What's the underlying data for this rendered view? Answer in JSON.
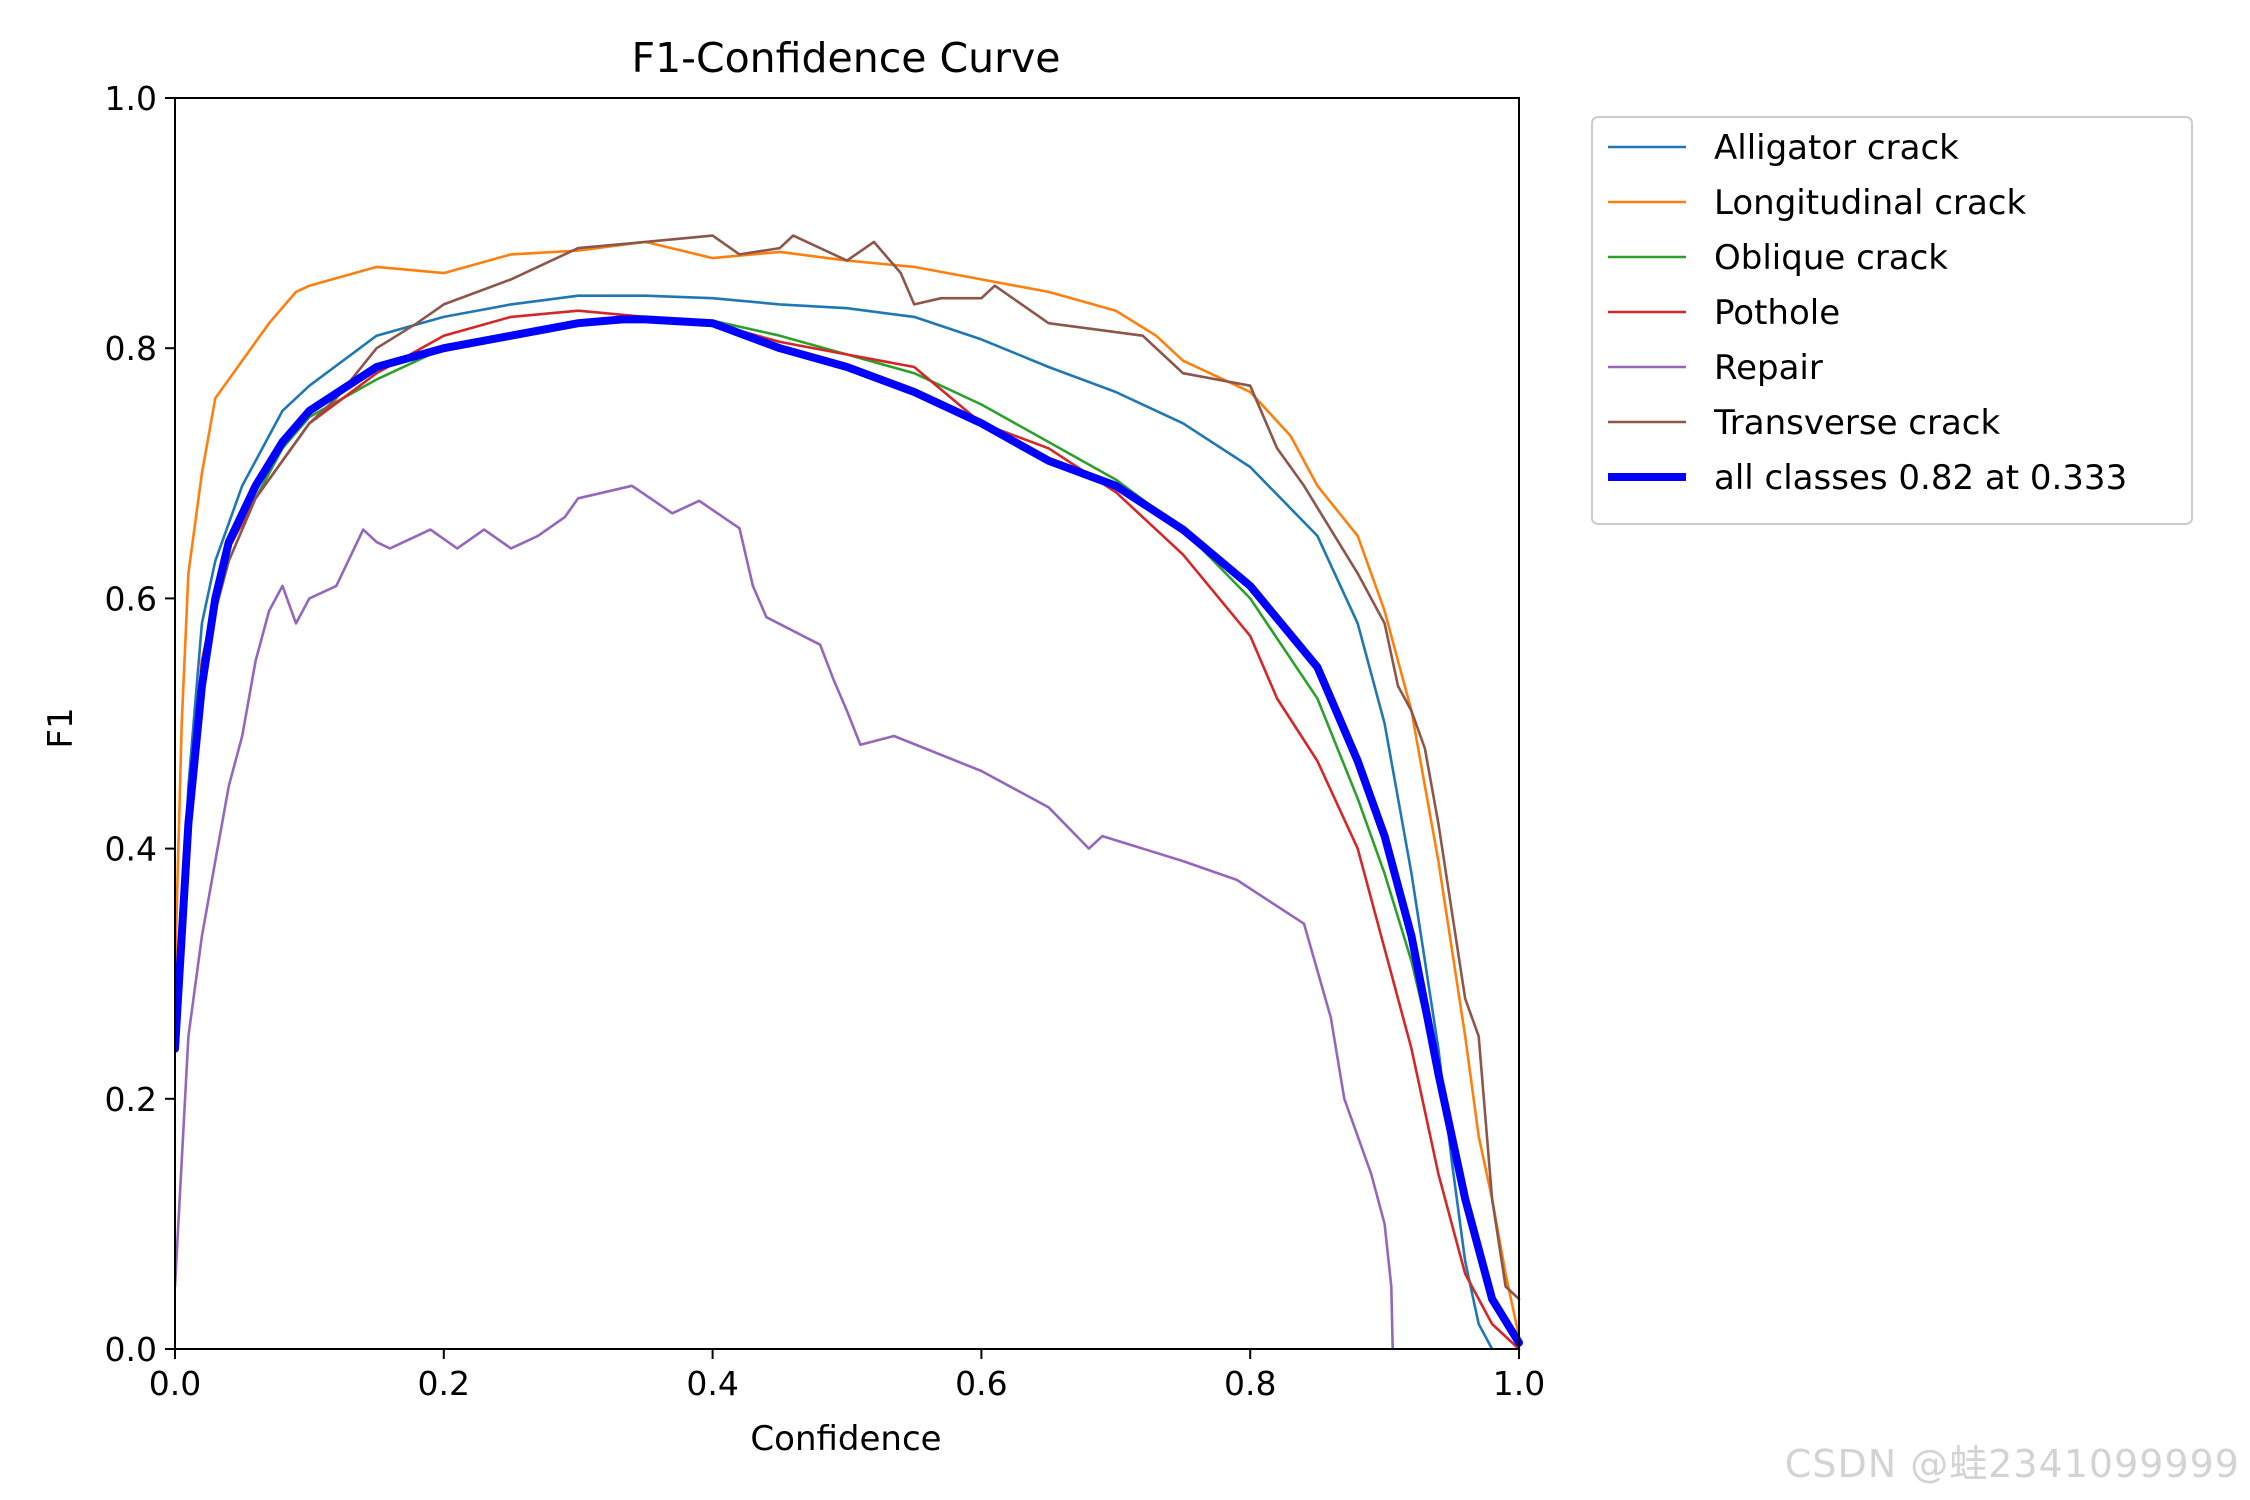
{
  "chart_data": {
    "type": "line",
    "title": "F1-Confidence Curve",
    "xlabel": "Confidence",
    "ylabel": "F1",
    "xlim": [
      0,
      1
    ],
    "ylim": [
      0,
      1
    ],
    "xticks": [
      "0.0",
      "0.2",
      "0.4",
      "0.6",
      "0.8",
      "1.0"
    ],
    "yticks": [
      "0.0",
      "0.2",
      "0.4",
      "0.6",
      "0.8",
      "1.0"
    ],
    "legend_position": "outside-upper-right",
    "series": [
      {
        "name": "Alligator crack",
        "color": "#1f77b4",
        "bold": false,
        "points": [
          [
            0,
            0.24
          ],
          [
            0.01,
            0.45
          ],
          [
            0.02,
            0.58
          ],
          [
            0.03,
            0.63
          ],
          [
            0.05,
            0.69
          ],
          [
            0.08,
            0.75
          ],
          [
            0.1,
            0.77
          ],
          [
            0.15,
            0.81
          ],
          [
            0.2,
            0.825
          ],
          [
            0.25,
            0.835
          ],
          [
            0.3,
            0.842
          ],
          [
            0.35,
            0.842
          ],
          [
            0.4,
            0.84
          ],
          [
            0.45,
            0.835
          ],
          [
            0.5,
            0.832
          ],
          [
            0.55,
            0.825
          ],
          [
            0.6,
            0.807
          ],
          [
            0.65,
            0.785
          ],
          [
            0.7,
            0.765
          ],
          [
            0.75,
            0.74
          ],
          [
            0.8,
            0.705
          ],
          [
            0.85,
            0.65
          ],
          [
            0.88,
            0.58
          ],
          [
            0.9,
            0.5
          ],
          [
            0.92,
            0.38
          ],
          [
            0.94,
            0.24
          ],
          [
            0.95,
            0.15
          ],
          [
            0.96,
            0.07
          ],
          [
            0.97,
            0.02
          ],
          [
            0.98,
            0
          ]
        ]
      },
      {
        "name": "Longitudinal crack",
        "color": "#ff7f0e",
        "bold": false,
        "points": [
          [
            0,
            0.3
          ],
          [
            0.005,
            0.5
          ],
          [
            0.01,
            0.62
          ],
          [
            0.02,
            0.7
          ],
          [
            0.03,
            0.76
          ],
          [
            0.05,
            0.79
          ],
          [
            0.07,
            0.82
          ],
          [
            0.09,
            0.845
          ],
          [
            0.1,
            0.85
          ],
          [
            0.15,
            0.865
          ],
          [
            0.2,
            0.86
          ],
          [
            0.25,
            0.875
          ],
          [
            0.3,
            0.878
          ],
          [
            0.35,
            0.885
          ],
          [
            0.4,
            0.872
          ],
          [
            0.45,
            0.877
          ],
          [
            0.5,
            0.87
          ],
          [
            0.55,
            0.865
          ],
          [
            0.6,
            0.855
          ],
          [
            0.65,
            0.845
          ],
          [
            0.7,
            0.83
          ],
          [
            0.73,
            0.81
          ],
          [
            0.75,
            0.79
          ],
          [
            0.8,
            0.765
          ],
          [
            0.83,
            0.73
          ],
          [
            0.85,
            0.69
          ],
          [
            0.88,
            0.65
          ],
          [
            0.9,
            0.59
          ],
          [
            0.92,
            0.51
          ],
          [
            0.93,
            0.45
          ],
          [
            0.94,
            0.39
          ],
          [
            0.95,
            0.32
          ],
          [
            0.96,
            0.25
          ],
          [
            0.97,
            0.17
          ],
          [
            0.98,
            0.12
          ],
          [
            0.99,
            0.06
          ],
          [
            1.0,
            0.01
          ]
        ]
      },
      {
        "name": "Oblique crack",
        "color": "#2ca02c",
        "bold": false,
        "points": [
          [
            0,
            0.24
          ],
          [
            0.01,
            0.42
          ],
          [
            0.02,
            0.55
          ],
          [
            0.03,
            0.6
          ],
          [
            0.04,
            0.64
          ],
          [
            0.06,
            0.68
          ],
          [
            0.08,
            0.72
          ],
          [
            0.1,
            0.745
          ],
          [
            0.15,
            0.775
          ],
          [
            0.2,
            0.8
          ],
          [
            0.25,
            0.81
          ],
          [
            0.3,
            0.82
          ],
          [
            0.35,
            0.822
          ],
          [
            0.4,
            0.822
          ],
          [
            0.45,
            0.81
          ],
          [
            0.5,
            0.795
          ],
          [
            0.55,
            0.78
          ],
          [
            0.6,
            0.755
          ],
          [
            0.65,
            0.725
          ],
          [
            0.7,
            0.695
          ],
          [
            0.75,
            0.655
          ],
          [
            0.8,
            0.6
          ],
          [
            0.85,
            0.52
          ],
          [
            0.88,
            0.44
          ],
          [
            0.9,
            0.38
          ],
          [
            0.92,
            0.31
          ],
          [
            0.94,
            0.22
          ],
          [
            0.96,
            0.12
          ],
          [
            0.98,
            0.04
          ],
          [
            1.0,
            0.005
          ]
        ]
      },
      {
        "name": "Pothole",
        "color": "#d62728",
        "bold": false,
        "points": [
          [
            0,
            0.24
          ],
          [
            0.01,
            0.42
          ],
          [
            0.02,
            0.55
          ],
          [
            0.03,
            0.6
          ],
          [
            0.04,
            0.64
          ],
          [
            0.06,
            0.68
          ],
          [
            0.08,
            0.71
          ],
          [
            0.1,
            0.74
          ],
          [
            0.15,
            0.78
          ],
          [
            0.2,
            0.81
          ],
          [
            0.25,
            0.825
          ],
          [
            0.3,
            0.83
          ],
          [
            0.35,
            0.825
          ],
          [
            0.4,
            0.82
          ],
          [
            0.45,
            0.805
          ],
          [
            0.5,
            0.795
          ],
          [
            0.55,
            0.785
          ],
          [
            0.6,
            0.74
          ],
          [
            0.65,
            0.72
          ],
          [
            0.7,
            0.685
          ],
          [
            0.75,
            0.635
          ],
          [
            0.8,
            0.57
          ],
          [
            0.82,
            0.52
          ],
          [
            0.85,
            0.47
          ],
          [
            0.88,
            0.4
          ],
          [
            0.9,
            0.32
          ],
          [
            0.92,
            0.24
          ],
          [
            0.94,
            0.14
          ],
          [
            0.96,
            0.06
          ],
          [
            0.98,
            0.02
          ],
          [
            1.0,
            0
          ]
        ]
      },
      {
        "name": "Repair",
        "color": "#9467bd",
        "bold": false,
        "points": [
          [
            0,
            0.05
          ],
          [
            0.005,
            0.15
          ],
          [
            0.01,
            0.25
          ],
          [
            0.02,
            0.33
          ],
          [
            0.03,
            0.39
          ],
          [
            0.04,
            0.45
          ],
          [
            0.05,
            0.49
          ],
          [
            0.06,
            0.55
          ],
          [
            0.07,
            0.59
          ],
          [
            0.08,
            0.61
          ],
          [
            0.09,
            0.58
          ],
          [
            0.1,
            0.6
          ],
          [
            0.12,
            0.61
          ],
          [
            0.14,
            0.655
          ],
          [
            0.15,
            0.645
          ],
          [
            0.16,
            0.64
          ],
          [
            0.19,
            0.655
          ],
          [
            0.21,
            0.64
          ],
          [
            0.23,
            0.655
          ],
          [
            0.25,
            0.64
          ],
          [
            0.27,
            0.65
          ],
          [
            0.29,
            0.665
          ],
          [
            0.3,
            0.68
          ],
          [
            0.34,
            0.69
          ],
          [
            0.37,
            0.668
          ],
          [
            0.39,
            0.678
          ],
          [
            0.42,
            0.656
          ],
          [
            0.43,
            0.61
          ],
          [
            0.44,
            0.585
          ],
          [
            0.48,
            0.563
          ],
          [
            0.49,
            0.535
          ],
          [
            0.5,
            0.51
          ],
          [
            0.51,
            0.483
          ],
          [
            0.535,
            0.49
          ],
          [
            0.6,
            0.462
          ],
          [
            0.65,
            0.433
          ],
          [
            0.68,
            0.4
          ],
          [
            0.69,
            0.41
          ],
          [
            0.75,
            0.39
          ],
          [
            0.79,
            0.375
          ],
          [
            0.84,
            0.34
          ],
          [
            0.86,
            0.265
          ],
          [
            0.87,
            0.2
          ],
          [
            0.89,
            0.14
          ],
          [
            0.9,
            0.1
          ],
          [
            0.905,
            0.05
          ],
          [
            0.906,
            0
          ]
        ]
      },
      {
        "name": "Transverse crack",
        "color": "#8c564b",
        "bold": false,
        "points": [
          [
            0,
            0.24
          ],
          [
            0.01,
            0.42
          ],
          [
            0.02,
            0.53
          ],
          [
            0.03,
            0.59
          ],
          [
            0.04,
            0.63
          ],
          [
            0.06,
            0.68
          ],
          [
            0.08,
            0.71
          ],
          [
            0.1,
            0.74
          ],
          [
            0.12,
            0.76
          ],
          [
            0.15,
            0.8
          ],
          [
            0.18,
            0.82
          ],
          [
            0.2,
            0.835
          ],
          [
            0.25,
            0.855
          ],
          [
            0.3,
            0.88
          ],
          [
            0.35,
            0.885
          ],
          [
            0.4,
            0.89
          ],
          [
            0.42,
            0.875
          ],
          [
            0.45,
            0.88
          ],
          [
            0.46,
            0.89
          ],
          [
            0.5,
            0.87
          ],
          [
            0.52,
            0.885
          ],
          [
            0.54,
            0.86
          ],
          [
            0.55,
            0.835
          ],
          [
            0.57,
            0.84
          ],
          [
            0.6,
            0.84
          ],
          [
            0.61,
            0.85
          ],
          [
            0.65,
            0.82
          ],
          [
            0.72,
            0.81
          ],
          [
            0.75,
            0.78
          ],
          [
            0.8,
            0.77
          ],
          [
            0.82,
            0.72
          ],
          [
            0.84,
            0.69
          ],
          [
            0.86,
            0.655
          ],
          [
            0.88,
            0.62
          ],
          [
            0.9,
            0.58
          ],
          [
            0.91,
            0.53
          ],
          [
            0.92,
            0.51
          ],
          [
            0.93,
            0.48
          ],
          [
            0.94,
            0.42
          ],
          [
            0.95,
            0.35
          ],
          [
            0.96,
            0.28
          ],
          [
            0.97,
            0.25
          ],
          [
            0.98,
            0.12
          ],
          [
            0.99,
            0.05
          ],
          [
            1.0,
            0.04
          ]
        ]
      },
      {
        "name": "all classes 0.82 at 0.333",
        "color": "#0000ff",
        "bold": true,
        "points": [
          [
            0,
            0.24
          ],
          [
            0.005,
            0.33
          ],
          [
            0.01,
            0.42
          ],
          [
            0.02,
            0.53
          ],
          [
            0.03,
            0.6
          ],
          [
            0.04,
            0.645
          ],
          [
            0.06,
            0.69
          ],
          [
            0.08,
            0.725
          ],
          [
            0.1,
            0.75
          ],
          [
            0.15,
            0.785
          ],
          [
            0.2,
            0.8
          ],
          [
            0.25,
            0.81
          ],
          [
            0.3,
            0.82
          ],
          [
            0.333,
            0.823
          ],
          [
            0.35,
            0.823
          ],
          [
            0.4,
            0.82
          ],
          [
            0.45,
            0.8
          ],
          [
            0.5,
            0.785
          ],
          [
            0.55,
            0.765
          ],
          [
            0.6,
            0.74
          ],
          [
            0.65,
            0.71
          ],
          [
            0.7,
            0.69
          ],
          [
            0.75,
            0.655
          ],
          [
            0.8,
            0.61
          ],
          [
            0.85,
            0.545
          ],
          [
            0.88,
            0.47
          ],
          [
            0.9,
            0.41
          ],
          [
            0.92,
            0.33
          ],
          [
            0.94,
            0.22
          ],
          [
            0.96,
            0.12
          ],
          [
            0.98,
            0.04
          ],
          [
            1.0,
            0.005
          ]
        ]
      }
    ]
  },
  "watermark": "CSDN @蛙2341099999"
}
